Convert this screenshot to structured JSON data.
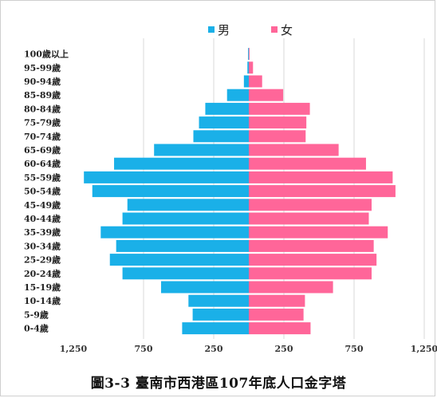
{
  "caption": "圖3-3 臺南市西港區107年底人口金字塔",
  "chart_data": {
    "type": "bar",
    "orientation": "horizontal-population-pyramid",
    "categories": [
      "100歲以上",
      "95-99歲",
      "90-94歲",
      "85-89歲",
      "80-84歲",
      "75-79歲",
      "70-74歲",
      "65-69歲",
      "60-64歲",
      "55-59歲",
      "50-54歲",
      "45-49歲",
      "40-44歲",
      "35-39歲",
      "30-34歲",
      "25-29歲",
      "20-24歲",
      "15-19歲",
      "10-14歲",
      "5-9歲",
      "0-4歲"
    ],
    "series": [
      {
        "name": "男",
        "color": "#1ab0e8",
        "side": "left",
        "values": [
          5,
          10,
          35,
          155,
          310,
          355,
          395,
          675,
          960,
          1175,
          1115,
          865,
          900,
          1055,
          945,
          990,
          900,
          625,
          430,
          400,
          475
        ]
      },
      {
        "name": "女",
        "color": "#ff6699",
        "side": "right",
        "values": [
          5,
          30,
          95,
          245,
          435,
          410,
          405,
          640,
          835,
          1025,
          1045,
          875,
          855,
          990,
          890,
          910,
          875,
          600,
          400,
          390,
          440
        ]
      }
    ],
    "xlim": [
      -1250,
      1250
    ],
    "x_ticks": [
      -1250,
      -750,
      -250,
      250,
      750,
      1250
    ],
    "x_tick_labels": [
      "1,250",
      "750",
      "250",
      "250",
      "750",
      "1,250"
    ],
    "grid": "vertical",
    "legend": "top-center"
  }
}
